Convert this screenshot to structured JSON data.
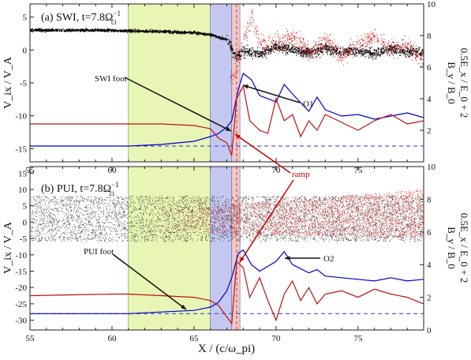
{
  "chart_data": [
    {
      "type": "scatter",
      "panel": "a",
      "title": "(a) SWI, t=7.8Ω",
      "title_sup": "−1",
      "title_sub": "ci",
      "ylabel_left": "V_ix / V_A",
      "ylabel_right_1": "B_y / B_0",
      "ylabel_right_2": "0.5E_x / E_0 + 2",
      "xlim": [
        55,
        79
      ],
      "ylim_left": [
        -17,
        7
      ],
      "ylim_right": [
        0,
        10
      ],
      "yticks_left": [
        "5",
        "0",
        "-5",
        "-10",
        "-15"
      ],
      "yticks_right": [
        "10",
        "8",
        "6",
        "4",
        "2"
      ],
      "shaded_regions": [
        {
          "x0": 61.0,
          "x1": 66.0,
          "color": "#e8f5b4"
        },
        {
          "x0": 66.0,
          "x1": 67.3,
          "color": "#c4c8f0"
        },
        {
          "x0": 67.3,
          "x1": 67.8,
          "color": "#f0c8c8"
        }
      ],
      "vlines": [
        67.6
      ],
      "baseline_right": 1.0,
      "series": [
        {
          "color": "#000000",
          "x": [
            55,
            57,
            59,
            61,
            63,
            65,
            66,
            67,
            67.5,
            68,
            69,
            70,
            71,
            72,
            73,
            74,
            75,
            76,
            77,
            78,
            79
          ],
          "y": [
            3.0,
            3.0,
            3.0,
            2.9,
            2.8,
            2.6,
            2.3,
            1.6,
            -1.0,
            -0.2,
            -0.6,
            0.5,
            0.0,
            -0.5,
            0.4,
            -0.4,
            -0.1,
            -0.6,
            0.2,
            -0.3,
            -0.4
          ]
        },
        {
          "color": "#cc0000",
          "x": [
            67.2,
            67.5,
            68,
            68.5,
            69,
            70,
            71,
            72,
            73,
            74,
            75,
            76,
            77,
            78,
            79
          ],
          "y": [
            -4.0,
            -3.5,
            1.5,
            5.0,
            1.0,
            0.8,
            2.0,
            -0.5,
            1.5,
            -1.0,
            1.0,
            2.0,
            0.0,
            0.5,
            -1.5
          ]
        },
        {
          "color": "#0000cc",
          "x": [
            55,
            60,
            61,
            63,
            65,
            66,
            66.5,
            67,
            67.3,
            67.7,
            68,
            68.5,
            69,
            70,
            70.5,
            71,
            72,
            72.5,
            73,
            74,
            75,
            76,
            77,
            78,
            79
          ],
          "y": [
            1.0,
            1.0,
            1.0,
            1.1,
            1.3,
            1.6,
            1.8,
            2.2,
            2.6,
            4.6,
            5.6,
            5.2,
            4.2,
            3.8,
            4.9,
            4.3,
            3.2,
            4.1,
            3.3,
            2.9,
            3.0,
            2.7,
            2.9,
            3.1,
            2.8
          ]
        },
        {
          "color": "#bb1111",
          "x": [
            55,
            60,
            61,
            63,
            65,
            66,
            66.5,
            67,
            67.3,
            67.6,
            68,
            68.4,
            69,
            69.5,
            70,
            70.5,
            71,
            71.5,
            72,
            72.5,
            73,
            74,
            75,
            76,
            77,
            78,
            79
          ],
          "y": [
            2.4,
            2.4,
            2.4,
            2.4,
            2.3,
            2.1,
            1.5,
            1.2,
            0.4,
            4.0,
            4.8,
            2.6,
            2.0,
            1.8,
            4.0,
            2.6,
            3.0,
            1.6,
            2.6,
            2.0,
            3.0,
            2.5,
            2.0,
            2.6,
            3.0,
            2.4,
            2.6
          ]
        }
      ],
      "annotations": [
        {
          "text": "SWI foot",
          "color": "#111111"
        },
        {
          "text": "O1",
          "color": "#111111"
        }
      ]
    },
    {
      "type": "scatter",
      "panel": "b",
      "title": "(b) PUI, t=7.8Ω",
      "title_sup": "−1",
      "title_sub": "ci",
      "ylabel_left": "V_ix / V_A",
      "ylabel_right_1": "B_y / B_0",
      "ylabel_right_2": "0.5E_x / E_0 + 2",
      "xlabel": "X / (c/ω_pi)",
      "xlim": [
        55,
        79
      ],
      "ylim_left": [
        -33,
        17
      ],
      "ylim_right": [
        0,
        10
      ],
      "xticks": [
        "55",
        "60",
        "65",
        "70",
        "75"
      ],
      "yticks_left": [
        "15",
        "10",
        "5",
        "0",
        "-5",
        "-10",
        "-15",
        "-20",
        "-25",
        "-30"
      ],
      "yticks_right": [
        "10",
        "8",
        "6",
        "4",
        "2",
        "0"
      ],
      "shaded_regions": [
        {
          "x0": 61.0,
          "x1": 66.0,
          "color": "#e8f5b4"
        },
        {
          "x0": 66.0,
          "x1": 67.3,
          "color": "#c4c8f0"
        },
        {
          "x0": 67.3,
          "x1": 67.8,
          "color": "#f0c8c8"
        }
      ],
      "vlines": [
        67.6
      ],
      "baseline_right": 1.0,
      "series": [
        {
          "color": "#000000",
          "x": [
            55,
            79
          ],
          "y_band": [
            -6,
            8
          ]
        },
        {
          "color": "#cc0000",
          "x": [
            63,
            79
          ],
          "y_band": [
            -5,
            10
          ]
        },
        {
          "color": "#0000cc",
          "x": [
            55,
            60,
            61,
            63,
            65,
            66,
            66.5,
            67,
            67.3,
            67.7,
            68,
            68.5,
            69,
            70,
            70.5,
            71,
            72,
            72.5,
            73,
            74,
            75,
            76,
            77,
            78,
            79
          ],
          "y": [
            1.0,
            1.0,
            1.0,
            1.1,
            1.2,
            1.4,
            1.7,
            2.4,
            3.2,
            4.7,
            4.9,
            4.0,
            3.6,
            4.2,
            4.8,
            4.0,
            3.5,
            3.7,
            3.3,
            3.2,
            3.1,
            3.0,
            3.2,
            3.0,
            3.1
          ]
        },
        {
          "color": "#bb1111",
          "x": [
            55,
            60,
            61,
            63,
            65,
            66,
            66.5,
            67,
            67.3,
            67.6,
            68,
            68.4,
            69,
            69.5,
            70,
            70.5,
            71,
            71.5,
            72,
            72.5,
            73,
            74,
            75,
            76,
            77,
            78,
            79
          ],
          "y": [
            2.1,
            2.2,
            2.2,
            2.1,
            2.0,
            1.8,
            1.5,
            0.8,
            0.4,
            4.2,
            3.8,
            2.0,
            3.2,
            1.8,
            0.6,
            2.2,
            3.0,
            1.8,
            2.6,
            1.6,
            2.2,
            2.4,
            2.0,
            2.5,
            2.2,
            2.0,
            1.6
          ]
        }
      ],
      "annotations": [
        {
          "text": "PUI foot",
          "color": "#111111"
        },
        {
          "text": "O2",
          "color": "#111111"
        },
        {
          "text": "ramp",
          "color": "#cc0000"
        }
      ]
    }
  ]
}
